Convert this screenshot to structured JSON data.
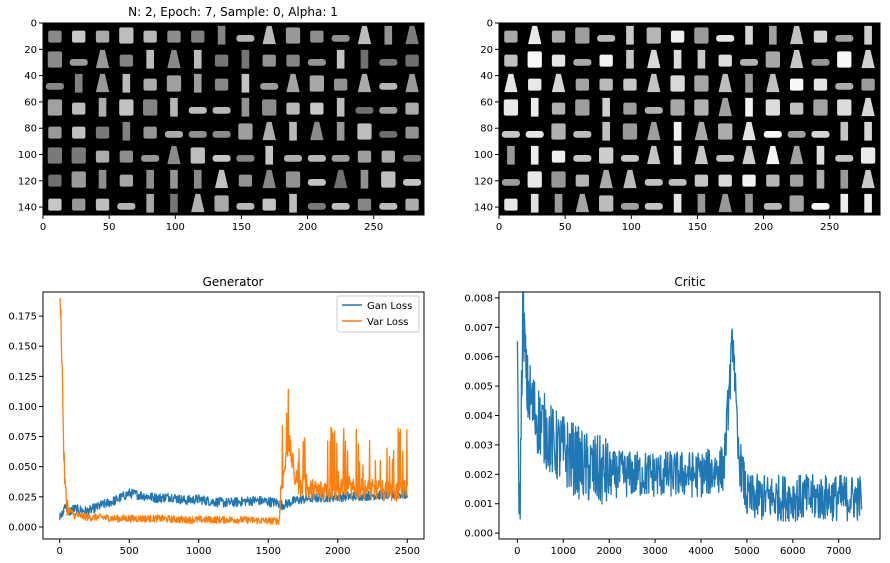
{
  "figure": {
    "top_left_title": "N: 2, Epoch: 7, Sample: 0, Alpha: 1",
    "top_right_title": ""
  },
  "chart_data": [
    {
      "type": "image",
      "title": "N: 2, Epoch: 7, Sample: 0, Alpha: 1",
      "description_kind": "grid of generated fashion images",
      "xlim": [
        0,
        288
      ],
      "ylim": [
        146,
        0
      ],
      "xticks": [
        "0",
        "50",
        "100",
        "150",
        "200",
        "250"
      ],
      "yticks": [
        "0",
        "20",
        "40",
        "60",
        "80",
        "100",
        "120",
        "140"
      ],
      "grid_rows": 8,
      "grid_cols": 16
    },
    {
      "type": "image",
      "title": "",
      "description_kind": "grid of real fashion images",
      "xlim": [
        0,
        288
      ],
      "ylim": [
        146,
        0
      ],
      "xticks": [
        "0",
        "50",
        "100",
        "150",
        "200",
        "250"
      ],
      "yticks": [
        "0",
        "20",
        "40",
        "60",
        "80",
        "100",
        "120",
        "140"
      ],
      "grid_rows": 8,
      "grid_cols": 16
    },
    {
      "type": "line",
      "title": "Generator",
      "xlim": [
        -120,
        2620
      ],
      "ylim": [
        -0.01,
        0.195
      ],
      "xticks": [
        0,
        500,
        1000,
        1500,
        2000,
        2500
      ],
      "xtick_labels": [
        "0",
        "500",
        "1000",
        "1500",
        "2000",
        "2500"
      ],
      "yticks": [
        0.0,
        0.025,
        0.05,
        0.075,
        0.1,
        0.125,
        0.15,
        0.175
      ],
      "ytick_labels": [
        "0.000",
        "0.025",
        "0.050",
        "0.075",
        "0.100",
        "0.125",
        "0.150",
        "0.175"
      ],
      "legend_position": "top-right",
      "series": [
        {
          "name": "Gan Loss",
          "color": "#1f77b4",
          "points": [
            [
              0,
              0.009
            ],
            [
              20,
              0.01
            ],
            [
              40,
              0.02
            ],
            [
              60,
              0.012
            ],
            [
              100,
              0.015
            ],
            [
              200,
              0.013
            ],
            [
              300,
              0.018
            ],
            [
              400,
              0.022
            ],
            [
              500,
              0.028
            ],
            [
              600,
              0.026
            ],
            [
              700,
              0.024
            ],
            [
              800,
              0.025
            ],
            [
              900,
              0.022
            ],
            [
              1000,
              0.023
            ],
            [
              1100,
              0.021
            ],
            [
              1200,
              0.02
            ],
            [
              1300,
              0.021
            ],
            [
              1400,
              0.022
            ],
            [
              1500,
              0.021
            ],
            [
              1570,
              0.02
            ],
            [
              1600,
              0.018
            ],
            [
              1650,
              0.02
            ],
            [
              1700,
              0.022
            ],
            [
              1800,
              0.024
            ],
            [
              2000,
              0.025
            ],
            [
              2200,
              0.026
            ],
            [
              2400,
              0.027
            ],
            [
              2500,
              0.027
            ]
          ]
        },
        {
          "name": "Var Loss",
          "color": "#ff7f0e",
          "points": [
            [
              0,
              0.18
            ],
            [
              5,
              0.188
            ],
            [
              10,
              0.17
            ],
            [
              20,
              0.12
            ],
            [
              30,
              0.06
            ],
            [
              40,
              0.03
            ],
            [
              60,
              0.015
            ],
            [
              100,
              0.01
            ],
            [
              200,
              0.008
            ],
            [
              300,
              0.008
            ],
            [
              400,
              0.007
            ],
            [
              500,
              0.007
            ],
            [
              700,
              0.007
            ],
            [
              900,
              0.006
            ],
            [
              1100,
              0.006
            ],
            [
              1300,
              0.006
            ],
            [
              1500,
              0.005
            ],
            [
              1580,
              0.005
            ],
            [
              1590,
              0.03
            ],
            [
              1620,
              0.05
            ],
            [
              1650,
              0.07
            ],
            [
              1700,
              0.035
            ],
            [
              1800,
              0.03
            ],
            [
              2000,
              0.03
            ],
            [
              2200,
              0.03
            ],
            [
              2400,
              0.028
            ],
            [
              2500,
              0.03
            ]
          ]
        }
      ]
    },
    {
      "type": "line",
      "title": "Critic",
      "xlim": [
        -400,
        7900
      ],
      "ylim": [
        -0.0002,
        0.0082
      ],
      "xticks": [
        0,
        1000,
        2000,
        3000,
        4000,
        5000,
        6000,
        7000
      ],
      "xtick_labels": [
        "0",
        "1000",
        "2000",
        "3000",
        "4000",
        "5000",
        "6000",
        "7000"
      ],
      "yticks": [
        0.0,
        0.001,
        0.002,
        0.003,
        0.004,
        0.005,
        0.006,
        0.007,
        0.008
      ],
      "ytick_labels": [
        "0.000",
        "0.001",
        "0.002",
        "0.003",
        "0.004",
        "0.005",
        "0.006",
        "0.007",
        "0.008"
      ],
      "series": [
        {
          "name": "",
          "color": "#1f77b4",
          "points": [
            [
              0,
              0.0054
            ],
            [
              50,
              0.0002
            ],
            [
              120,
              0.0079
            ],
            [
              200,
              0.005
            ],
            [
              400,
              0.004
            ],
            [
              600,
              0.0035
            ],
            [
              800,
              0.003
            ],
            [
              1000,
              0.0028
            ],
            [
              1500,
              0.0022
            ],
            [
              2000,
              0.002
            ],
            [
              2500,
              0.002
            ],
            [
              3000,
              0.002
            ],
            [
              3500,
              0.002
            ],
            [
              4000,
              0.002
            ],
            [
              4500,
              0.0022
            ],
            [
              4700,
              0.0068
            ],
            [
              4800,
              0.0028
            ],
            [
              5000,
              0.0012
            ],
            [
              5500,
              0.0012
            ],
            [
              6000,
              0.0012
            ],
            [
              6500,
              0.0012
            ],
            [
              7000,
              0.0012
            ],
            [
              7500,
              0.0012
            ]
          ]
        }
      ]
    }
  ]
}
